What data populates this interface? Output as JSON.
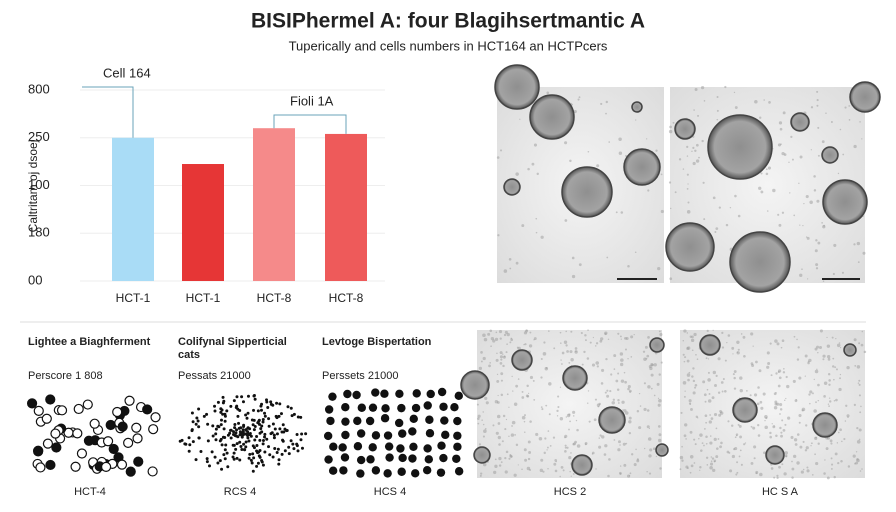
{
  "header": {
    "title": "BISIPhermel A: four Blagihsertmantic A",
    "subtitle": "Tuperically and cells numbers in HCT164 an HCTPcers"
  },
  "chart_data": {
    "type": "bar",
    "y_label": "Caltritam oj dsoej",
    "categories": [
      "HCT-1",
      "HCT-1",
      "HCT-8",
      "HCT-8"
    ],
    "values": [
      3.0,
      2.45,
      3.2,
      3.08
    ],
    "colors": [
      "#a9dcf6",
      "#e63636",
      "#f58a8a",
      "#ee5a5a"
    ],
    "ylim": [
      0,
      4
    ],
    "yticks": [
      {
        "value": 0,
        "label": "00"
      },
      {
        "value": 1,
        "label": "180"
      },
      {
        "value": 2,
        "label": "100"
      },
      {
        "value": 3,
        "label": "250"
      },
      {
        "value": 4,
        "label": "800"
      }
    ],
    "annotations": [
      "Cell 164",
      "Fioli 1A"
    ]
  },
  "panels": [
    {
      "title": [
        "Lightee a Biaghferment"
      ],
      "subtitle": "Perscore 1 808",
      "caption": "HCT-4"
    },
    {
      "title": [
        "Colifynal Sipperticial",
        "cats"
      ],
      "subtitle": "Pessats 21000",
      "caption": "RCS 4"
    },
    {
      "title": [
        "Levtoge Bispertation"
      ],
      "subtitle": "Perssets 21000",
      "caption": "HCS 4"
    },
    {
      "caption": "HCS 2"
    },
    {
      "caption": "HC S A"
    }
  ]
}
